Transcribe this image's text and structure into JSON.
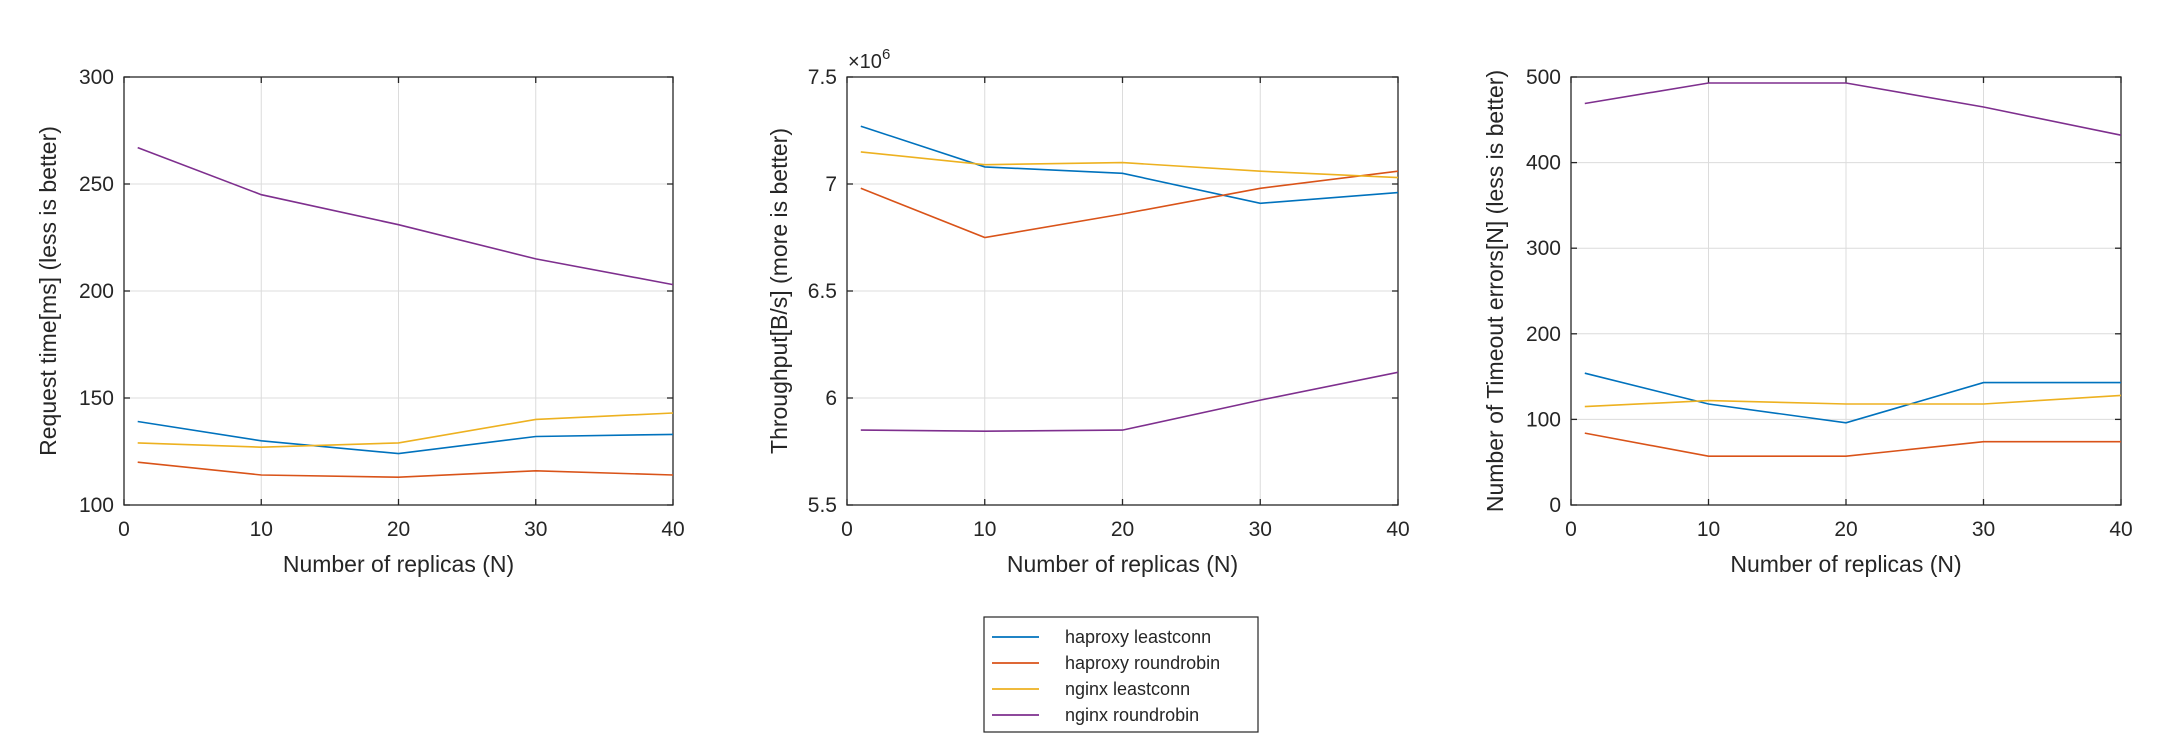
{
  "colors": {
    "haproxy_leastconn": "#0072BD",
    "haproxy_roundrobin": "#D95319",
    "nginx_leastconn": "#EDB120",
    "nginx_roundrobin": "#7E2F8E",
    "grid": "#dcdcdc",
    "axis": "#262626"
  },
  "legend": {
    "position": "bottom-center",
    "entries": [
      "haproxy leastconn",
      "haproxy roundrobin",
      "nginx leastconn",
      "nginx roundrobin"
    ]
  },
  "chart_data": [
    {
      "type": "line",
      "xlabel": "Number of replicas (N)",
      "ylabel": "Request time[ms] (less is better)",
      "xlim": [
        0,
        40
      ],
      "ylim": [
        100,
        300
      ],
      "xticks": [
        "0",
        "10",
        "20",
        "30",
        "40"
      ],
      "yticks": [
        "100",
        "150",
        "200",
        "250",
        "300"
      ],
      "grid": true,
      "x": [
        1,
        10,
        20,
        30,
        40
      ],
      "series": [
        {
          "name": "haproxy leastconn",
          "values": [
            139,
            130,
            124,
            132,
            133
          ]
        },
        {
          "name": "haproxy roundrobin",
          "values": [
            120,
            114,
            113,
            116,
            114
          ]
        },
        {
          "name": "nginx leastconn",
          "values": [
            129,
            127,
            129,
            140,
            143
          ]
        },
        {
          "name": "nginx roundrobin",
          "values": [
            267,
            245,
            231,
            215,
            203
          ]
        }
      ]
    },
    {
      "type": "line",
      "xlabel": "Number of replicas (N)",
      "ylabel": "Throughput[B/s] (more is better)",
      "xlim": [
        0,
        40
      ],
      "ylim": [
        5.5,
        7.5
      ],
      "y_multiplier": "×10",
      "y_multiplier_exp": "6",
      "xticks": [
        "0",
        "10",
        "20",
        "30",
        "40"
      ],
      "yticks": [
        "5.5",
        "6",
        "6.5",
        "7",
        "7.5"
      ],
      "grid": true,
      "x": [
        1,
        10,
        20,
        30,
        40
      ],
      "series": [
        {
          "name": "haproxy leastconn",
          "values": [
            7.27,
            7.08,
            7.05,
            6.91,
            6.96
          ]
        },
        {
          "name": "haproxy roundrobin",
          "values": [
            6.98,
            6.75,
            6.86,
            6.98,
            7.06
          ]
        },
        {
          "name": "nginx leastconn",
          "values": [
            7.15,
            7.09,
            7.1,
            7.06,
            7.03
          ]
        },
        {
          "name": "nginx roundrobin",
          "values": [
            5.85,
            5.845,
            5.85,
            5.99,
            6.12
          ]
        }
      ]
    },
    {
      "type": "line",
      "xlabel": "Number of replicas (N)",
      "ylabel": "Number of Timeout errors[N] (less is better)",
      "xlim": [
        0,
        40
      ],
      "ylim": [
        0,
        500
      ],
      "xticks": [
        "0",
        "10",
        "20",
        "30",
        "40"
      ],
      "yticks": [
        "0",
        "100",
        "200",
        "300",
        "400",
        "500"
      ],
      "grid": true,
      "x": [
        1,
        10,
        20,
        30,
        40
      ],
      "series": [
        {
          "name": "haproxy leastconn",
          "values": [
            154,
            118,
            96,
            143,
            143
          ]
        },
        {
          "name": "haproxy roundrobin",
          "values": [
            84,
            57,
            57,
            74,
            74
          ]
        },
        {
          "name": "nginx leastconn",
          "values": [
            115,
            122,
            118,
            118,
            128
          ]
        },
        {
          "name": "nginx roundrobin",
          "values": [
            469,
            493,
            493,
            465,
            432
          ]
        }
      ]
    }
  ]
}
